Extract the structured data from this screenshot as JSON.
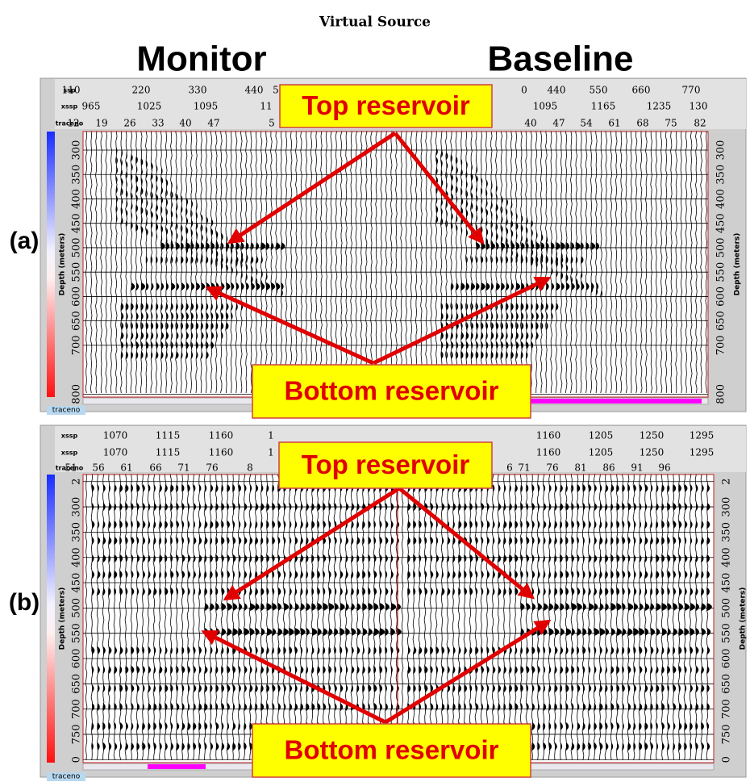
{
  "title": "Virtual Source",
  "columns": [
    "Monitor",
    "Baseline"
  ],
  "panels": [
    {
      "label": "(a)",
      "header_rows": [
        {
          "name": "ssp",
          "left": [
            110,
            220,
            330,
            440,
            "5"
          ],
          "right": [
            "0",
            440,
            550,
            660,
            770
          ]
        },
        {
          "name": "xssp",
          "left": [
            965,
            1025,
            1095,
            "11"
          ],
          "right": [
            1095,
            1165,
            1235,
            "130"
          ]
        },
        {
          "name": "traceno",
          "left": [
            12,
            19,
            26,
            33,
            40,
            47,
            "5"
          ],
          "right": [
            40,
            47,
            54,
            61,
            68,
            75,
            82
          ]
        }
      ],
      "depth_axis": {
        "label": "Depth (meters)",
        "ylim": [
          262,
          806
        ],
        "yticks": [
          300,
          350,
          400,
          450,
          500,
          550,
          600,
          650,
          700,
          800
        ]
      },
      "annotations": [
        "Top reservoir",
        "Bottom reservoir"
      ],
      "tab": "traceno"
    },
    {
      "label": "(b)",
      "header_rows": [
        {
          "name": "xssp",
          "left": [
            1070,
            1115,
            1160,
            "1"
          ],
          "right": [
            1160,
            1205,
            1250,
            1295
          ]
        },
        {
          "name": "xssp",
          "left": [
            1070,
            1115,
            1160,
            "1"
          ],
          "right": [
            1160,
            1205,
            1250,
            1295
          ]
        },
        {
          "name": "traceno",
          "left": [
            51,
            56,
            61,
            66,
            71,
            76,
            "8"
          ],
          "right": [
            "6",
            71,
            76,
            81,
            86,
            91,
            96
          ]
        }
      ],
      "depth_axis": {
        "label": "Depth (meters)",
        "ylim": [
          236,
          806
        ],
        "yticks": [
          {
            "value": 250,
            "label": "2"
          },
          300,
          350,
          400,
          450,
          500,
          550,
          600,
          650,
          700,
          750,
          {
            "value": 800,
            "label": "0"
          }
        ]
      },
      "annotations": [
        "Top reservoir",
        "Bottom reservoir"
      ],
      "tab": "traceno"
    }
  ]
}
